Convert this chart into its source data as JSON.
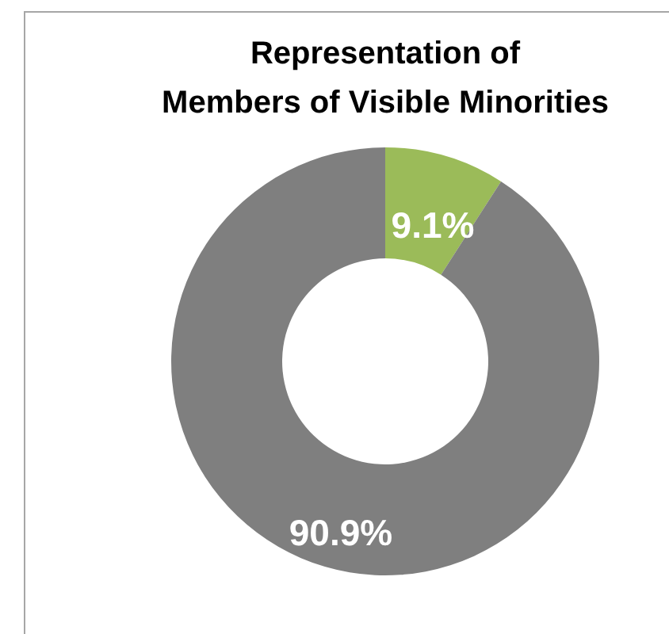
{
  "chart_data": {
    "type": "donut",
    "title": "Representation of\nMembers of Visible Minorities",
    "categories": [
      null,
      null
    ],
    "values": [
      9.1,
      90.9
    ],
    "colors": [
      "#9bbb59",
      "#7f7f7f"
    ],
    "value_labels": [
      "9.1%",
      "90.9%"
    ]
  }
}
